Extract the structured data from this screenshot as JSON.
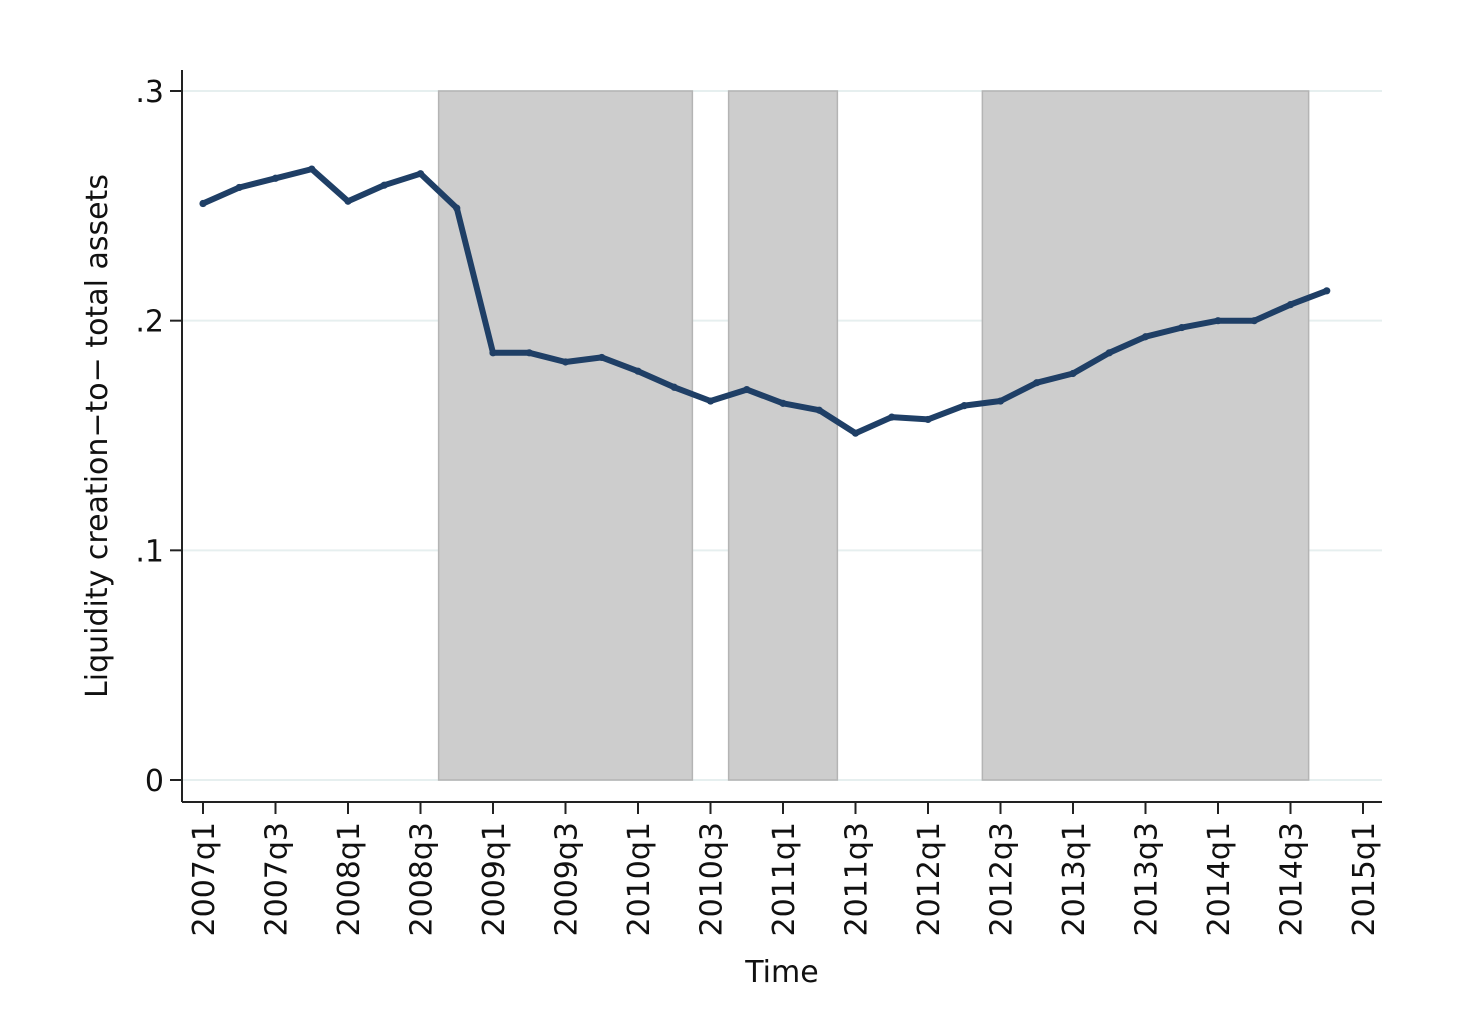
{
  "chart_data": {
    "type": "line",
    "title": "",
    "xlabel": "Time",
    "ylabel": "Liquidity creation−to− total assets",
    "x_tick_labels": [
      "2007q1",
      "2007q3",
      "2008q1",
      "2008q3",
      "2009q1",
      "2009q3",
      "2010q1",
      "2010q3",
      "2011q1",
      "2011q3",
      "2012q1",
      "2012q3",
      "2013q1",
      "2013q3",
      "2014q1",
      "2014q3",
      "2015q1"
    ],
    "y_ticks": [
      0,
      0.1,
      0.2,
      0.3
    ],
    "y_tick_labels": [
      "0",
      ".1",
      ".2",
      ".3"
    ],
    "ylim": [
      0,
      0.3
    ],
    "grid": true,
    "shaded_periods": [
      {
        "start": "2008q4",
        "end": "2010q2"
      },
      {
        "start": "2010q4",
        "end": "2011q2"
      },
      {
        "start": "2012q3",
        "end": "2014q3"
      }
    ],
    "series": [
      {
        "color": "#1f3f66",
        "x": [
          "2007q1",
          "2007q2",
          "2007q3",
          "2007q4",
          "2008q1",
          "2008q2",
          "2008q3",
          "2008q4",
          "2009q1",
          "2009q2",
          "2009q3",
          "2009q4",
          "2010q1",
          "2010q2",
          "2010q3",
          "2010q4",
          "2011q1",
          "2011q2",
          "2011q3",
          "2011q4",
          "2012q1",
          "2012q2",
          "2012q3",
          "2012q4",
          "2013q1",
          "2013q2",
          "2013q3",
          "2013q4",
          "2014q1",
          "2014q2",
          "2014q3",
          "2014q4"
        ],
        "values": [
          0.251,
          0.258,
          0.262,
          0.266,
          0.252,
          0.259,
          0.264,
          0.249,
          0.186,
          0.186,
          0.182,
          0.184,
          0.178,
          0.171,
          0.165,
          0.17,
          0.164,
          0.161,
          0.151,
          0.158,
          0.157,
          0.163,
          0.165,
          0.173,
          0.177,
          0.186,
          0.193,
          0.197,
          0.2,
          0.2,
          0.207,
          0.213
        ]
      }
    ]
  },
  "colors": {
    "line": "#1f3f66",
    "shade": "#cdcdcd",
    "shade_border": "#b4b4b4",
    "grid": "#e6efef",
    "axis": "#222222"
  }
}
